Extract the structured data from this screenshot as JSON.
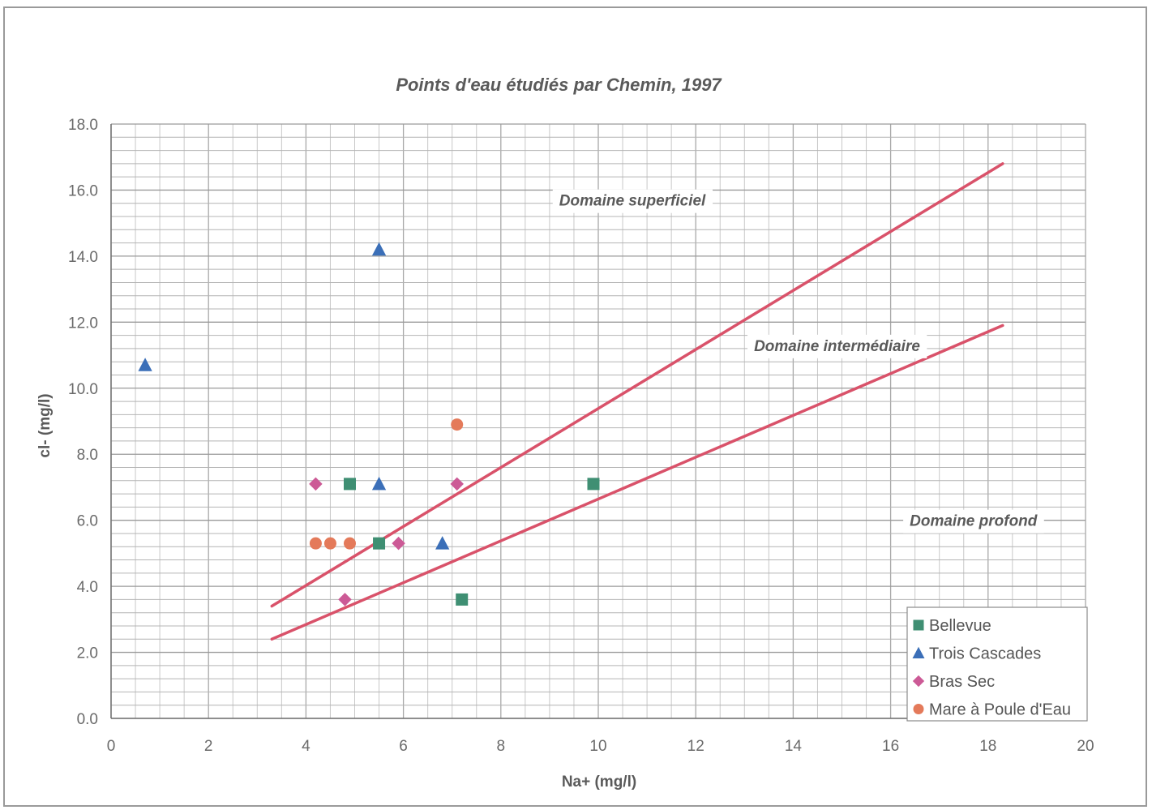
{
  "chart_data": {
    "type": "scatter",
    "title": "Points d'eau étudiés par Chemin, 1997",
    "xlabel": "Na+ (mg/l)",
    "ylabel": "cl- (mg/l)",
    "xlim": [
      0,
      20
    ],
    "ylim": [
      0,
      18
    ],
    "x_ticks": [
      "0",
      "2",
      "4",
      "6",
      "8",
      "10",
      "12",
      "14",
      "16",
      "18",
      "20"
    ],
    "y_ticks": [
      "0.0",
      "2.0",
      "4.0",
      "6.0",
      "8.0",
      "10.0",
      "12.0",
      "14.0",
      "16.0",
      "18.0"
    ],
    "grid": true,
    "legend_position": "bottom-right",
    "series": [
      {
        "name": "Bellevue",
        "marker": "square",
        "color": "#3f8f73",
        "points": [
          [
            4.9,
            7.1
          ],
          [
            5.5,
            5.3
          ],
          [
            9.9,
            7.1
          ],
          [
            7.2,
            3.6
          ]
        ]
      },
      {
        "name": "Trois Cascades",
        "marker": "triangle",
        "color": "#3b6fb8",
        "points": [
          [
            0.7,
            10.7
          ],
          [
            5.5,
            14.2
          ],
          [
            5.5,
            7.1
          ],
          [
            6.8,
            5.3
          ]
        ]
      },
      {
        "name": "Bras Sec",
        "marker": "diamond",
        "color": "#cc5a96",
        "points": [
          [
            4.2,
            7.1
          ],
          [
            7.1,
            7.1
          ],
          [
            5.9,
            5.3
          ],
          [
            4.8,
            3.6
          ]
        ]
      },
      {
        "name": "Mare à Poule d'Eau",
        "marker": "circle",
        "color": "#e47a5a",
        "points": [
          [
            7.1,
            8.9
          ],
          [
            4.2,
            5.3
          ],
          [
            4.5,
            5.3
          ],
          [
            4.9,
            5.3
          ]
        ]
      }
    ],
    "lines": [
      {
        "color": "#d9526a",
        "points": [
          [
            3.3,
            3.4
          ],
          [
            18.3,
            16.8
          ]
        ]
      },
      {
        "color": "#d9526a",
        "points": [
          [
            3.3,
            2.4
          ],
          [
            18.3,
            11.9
          ]
        ]
      }
    ],
    "annotations": [
      {
        "text": "Domaine superficiel",
        "x": 10.7,
        "y": 15.7
      },
      {
        "text": "Domaine intermédiaire",
        "x": 14.9,
        "y": 11.3
      },
      {
        "text": "Domaine profond",
        "x": 17.7,
        "y": 6.0
      }
    ]
  }
}
